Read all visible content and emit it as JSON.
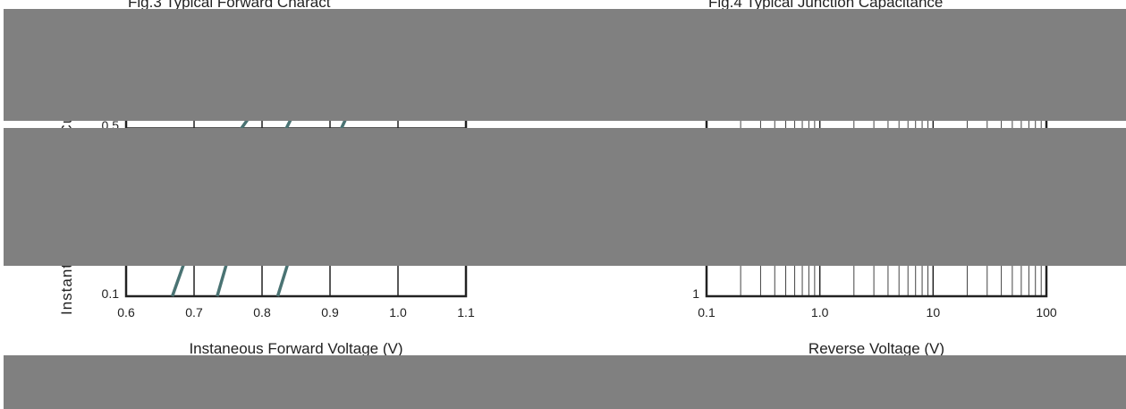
{
  "chart_data": [
    {
      "type": "line",
      "title": "Fig.3 Typical Forward Charact",
      "x_label": "Instaneous Forward Voltage (V)",
      "y_label": "Instantaneous Forward Current (A)",
      "xlim": [
        0.6,
        1.1
      ],
      "xticks": [
        0.6,
        0.7,
        0.8,
        0.9,
        {
          "value": 1.0,
          "label": "1.0"
        },
        1.1
      ],
      "ylim": [
        0.1,
        1
      ],
      "yticks": [
        0.1,
        0.5
      ],
      "ylog": true,
      "grid": true,
      "series": [
        {
          "color": "#4a7373",
          "x": [
            0.668,
            0.684,
            0.77,
            0.79
          ],
          "values": [
            0.1,
            0.134,
            0.5,
            0.6
          ]
        },
        {
          "color": "#4a7373",
          "x": [
            0.734,
            0.747,
            0.836,
            0.85
          ],
          "values": [
            0.1,
            0.134,
            0.5,
            0.6
          ]
        },
        {
          "color": "#4a7373",
          "x": [
            0.823,
            0.837,
            0.917,
            0.93
          ],
          "values": [
            0.1,
            0.134,
            0.5,
            0.6
          ]
        }
      ]
    },
    {
      "type": "line",
      "title": "Fig.4 Typical Junction Capacitance",
      "x_label": "Reverse Voltage (V)",
      "xlim": [
        0.1,
        100
      ],
      "xticks": [
        0.1,
        {
          "value": 1,
          "label": "1.0"
        },
        10,
        100
      ],
      "xlog": true,
      "x_minor_grid": [
        0.2,
        0.3,
        0.4,
        0.5,
        0.6,
        0.7,
        0.8,
        0.9,
        2,
        3,
        4,
        5,
        6,
        7,
        8,
        9,
        20,
        30,
        40,
        50,
        60,
        70,
        80,
        90
      ],
      "ylim": [
        1,
        100
      ],
      "yticks": [
        1
      ],
      "ylog": true,
      "grid": true,
      "series": []
    }
  ]
}
